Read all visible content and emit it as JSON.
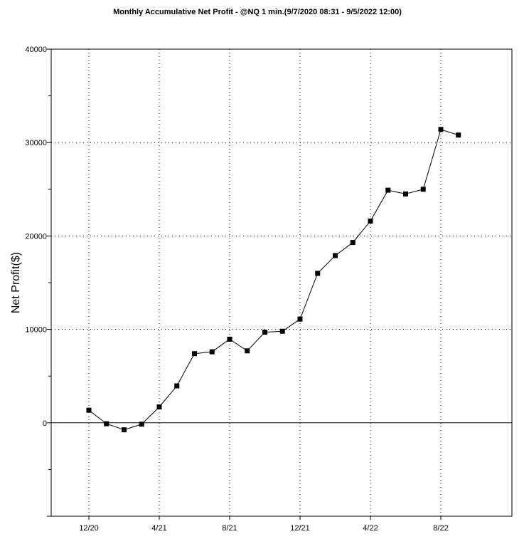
{
  "chart_data": {
    "type": "line",
    "title": "Monthly Accumulative Net Profit - @NQ 1 min.(9/7/2020 08:31 - 9/5/2022 12:00)",
    "xlabel": "",
    "ylabel": "Net Profit($)",
    "ylim": [
      -10000,
      40000
    ],
    "y_ticks": [
      40000,
      30000,
      20000,
      10000,
      0
    ],
    "y_tick_labels": [
      "40000",
      "30000",
      "20000",
      "10000",
      "0"
    ],
    "x_tick_labels": [
      "12/20",
      "4/21",
      "8/21",
      "12/21",
      "4/22",
      "8/22"
    ],
    "x_tick_indices": [
      0,
      4,
      8,
      12,
      16,
      20
    ],
    "grid": true,
    "legend": "none",
    "colors": {
      "line": "#000000",
      "marker": "#000000",
      "grid": "#000000",
      "axis": "#000000",
      "background": "#ffffff"
    },
    "marker": "square",
    "series": [
      {
        "values": [
          1350,
          -100,
          -750,
          -150,
          1700,
          3950,
          7400,
          7600,
          8950,
          7700,
          9700,
          9800,
          11100,
          16000,
          17900,
          19300,
          21600,
          24900,
          24500,
          25000,
          31400,
          30800
        ]
      }
    ]
  }
}
